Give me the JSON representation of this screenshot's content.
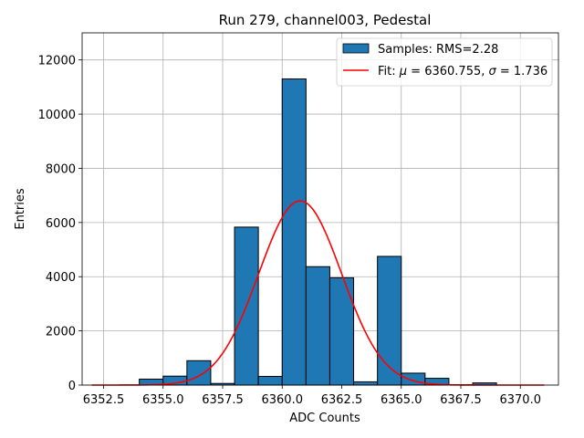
{
  "chart_data": {
    "type": "bar",
    "title": "Run 279, channel003, Pedestal",
    "xlabel": "ADC Counts",
    "ylabel": "Entries",
    "xlim": [
      6351.6,
      6371.6
    ],
    "ylim": [
      0,
      13000
    ],
    "xticks": [
      6352.5,
      6355.0,
      6357.5,
      6360.0,
      6362.5,
      6365.0,
      6367.5,
      6370.0
    ],
    "xtick_labels": [
      "6352.5",
      "6355.0",
      "6357.5",
      "6360.0",
      "6362.5",
      "6365.0",
      "6367.5",
      "6370.0"
    ],
    "yticks": [
      0,
      2000,
      4000,
      6000,
      8000,
      10000,
      12000
    ],
    "ytick_labels": [
      "0",
      "2000",
      "4000",
      "6000",
      "8000",
      "10000",
      "12000"
    ],
    "grid": true,
    "legend_position": "top-right",
    "histogram": {
      "name": "Samples: RMS=2.28",
      "color": "#1f77b4",
      "edge_color": "#000000",
      "bins": [
        {
          "left": 6354.0,
          "right": 6355.0,
          "count": 220
        },
        {
          "left": 6355.0,
          "right": 6356.0,
          "count": 330
        },
        {
          "left": 6356.0,
          "right": 6357.0,
          "count": 900
        },
        {
          "left": 6357.0,
          "right": 6358.0,
          "count": 60
        },
        {
          "left": 6358.0,
          "right": 6359.0,
          "count": 5830
        },
        {
          "left": 6359.0,
          "right": 6360.0,
          "count": 320
        },
        {
          "left": 6360.0,
          "right": 6361.0,
          "count": 11300
        },
        {
          "left": 6361.0,
          "right": 6362.0,
          "count": 4370
        },
        {
          "left": 6362.0,
          "right": 6363.0,
          "count": 3960
        },
        {
          "left": 6363.0,
          "right": 6364.0,
          "count": 120
        },
        {
          "left": 6364.0,
          "right": 6365.0,
          "count": 4750
        },
        {
          "left": 6365.0,
          "right": 6366.0,
          "count": 440
        },
        {
          "left": 6366.0,
          "right": 6367.0,
          "count": 250
        },
        {
          "left": 6367.0,
          "right": 6368.0,
          "count": 10
        },
        {
          "left": 6368.0,
          "right": 6369.0,
          "count": 80
        }
      ]
    },
    "fit": {
      "name_prefix": "Fit: ",
      "name_mu": "μ",
      "mu_text": " = 6360.755, ",
      "name_sigma": "σ",
      "sigma_text": " = 1.736",
      "type": "gaussian",
      "mu": 6360.755,
      "sigma": 1.736,
      "amplitude": 6800,
      "x_range": [
        6352.0,
        6371.0
      ],
      "color": "#ff0000"
    }
  }
}
